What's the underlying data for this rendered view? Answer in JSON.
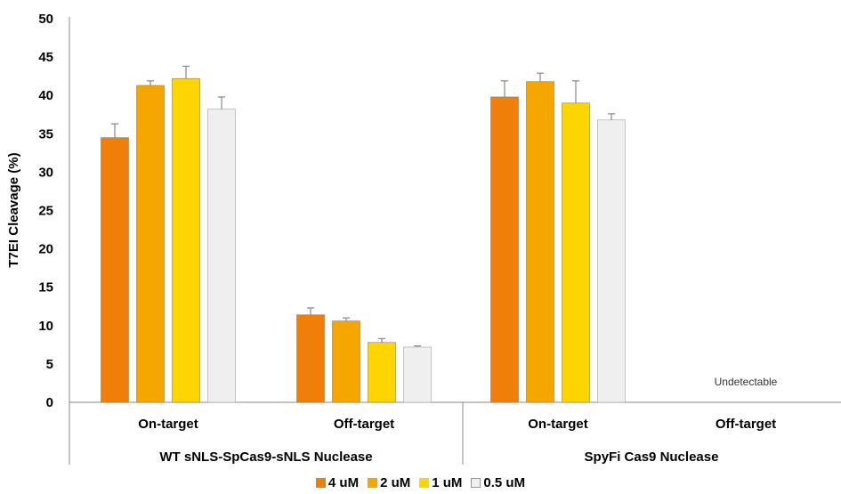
{
  "chart_data": {
    "type": "bar",
    "title": "",
    "ylabel": "T7EI Cleavage (%)",
    "ylim": [
      0,
      50
    ],
    "yticks": [
      0,
      5,
      10,
      15,
      20,
      25,
      30,
      35,
      40,
      45,
      50
    ],
    "grid": false,
    "legend_position": "bottom-center",
    "groups": [
      {
        "label": "WT sNLS-SpCas9-sNLS Nuclease",
        "categories": [
          {
            "label": "On-target",
            "values": [
              34.5,
              41.3,
              42.2,
              38.2
            ],
            "errors": [
              1.8,
              0.6,
              1.6,
              1.6
            ]
          },
          {
            "label": "Off-target",
            "values": [
              11.4,
              10.6,
              7.8,
              7.2
            ],
            "errors": [
              0.9,
              0.4,
              0.5,
              0.15
            ]
          }
        ]
      },
      {
        "label": "SpyFi Cas9 Nuclease",
        "categories": [
          {
            "label": "On-target",
            "values": [
              39.8,
              41.8,
              39.0,
              36.8
            ],
            "errors": [
              2.1,
              1.1,
              2.9,
              0.8
            ]
          },
          {
            "label": "Off-target",
            "values": [
              null,
              null,
              null,
              null
            ],
            "errors": [
              null,
              null,
              null,
              null
            ],
            "annotation": "Undetectable"
          }
        ]
      }
    ],
    "series": [
      {
        "name": "4 uM",
        "color": "#F07F09"
      },
      {
        "name": "2 uM",
        "color": "#F5A700"
      },
      {
        "name": "1 uM",
        "color": "#FFD500"
      },
      {
        "name": "0.5 uM",
        "color": "#EFEFEF"
      }
    ]
  }
}
